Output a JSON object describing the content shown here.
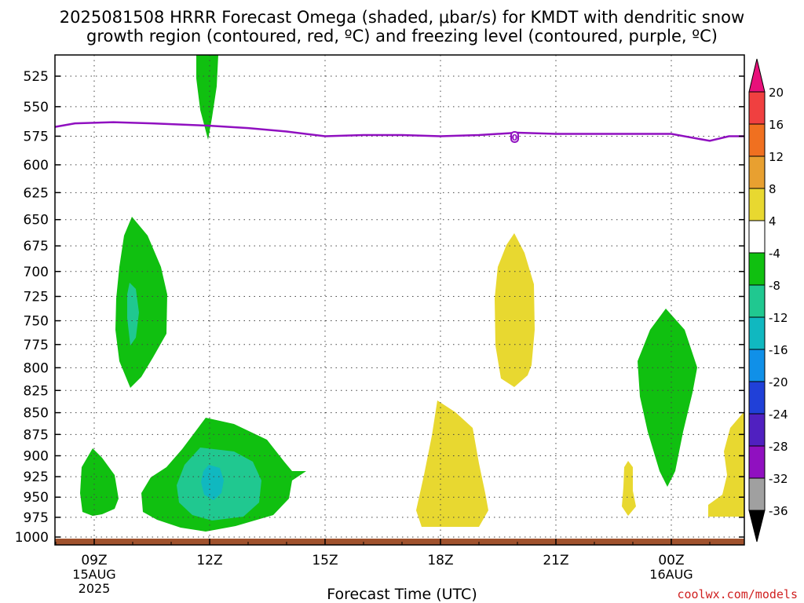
{
  "title": {
    "line1": "2025081508 HRRR Forecast Omega (shaded, μbar/s) for KMDT with dendritic snow",
    "line2": "growth region (contoured, red, ºC) and freezing level (contoured, purple, ºC)"
  },
  "xlabel": "Forecast Time (UTC)",
  "credit": "coolwx.com/models",
  "chart_data": {
    "type": "contour",
    "ylabels": [
      "525",
      "550",
      "575",
      "600",
      "625",
      "650",
      "675",
      "700",
      "725",
      "750",
      "775",
      "800",
      "825",
      "850",
      "875",
      "900",
      "925",
      "950",
      "975",
      "1000"
    ],
    "xticks": [
      {
        "label": "09Z",
        "sub": [
          "15AUG",
          "2025"
        ],
        "hour": 9
      },
      {
        "label": "12Z",
        "sub": [],
        "hour": 12
      },
      {
        "label": "15Z",
        "sub": [],
        "hour": 15
      },
      {
        "label": "18Z",
        "sub": [],
        "hour": 18
      },
      {
        "label": "21Z",
        "sub": [],
        "hour": 21
      },
      {
        "label": "00Z",
        "sub": [
          "16AUG"
        ],
        "hour": 24
      }
    ],
    "colorbar": {
      "labels": [
        "20",
        "16",
        "12",
        "8",
        "4",
        "-4",
        "-8",
        "-12",
        "-16",
        "-20",
        "-24",
        "-28",
        "-32",
        "-36"
      ],
      "colors": [
        "#e8107a",
        "#f04040",
        "#f07020",
        "#e8a030",
        "#e8d830",
        "#ffffff",
        "#10c010",
        "#20c890",
        "#10b8c0",
        "#1090e8",
        "#2040d8",
        "#5020c0",
        "#9010c0",
        "#a0a0a0",
        "#000000"
      ]
    },
    "freezing_level": {
      "label": "0",
      "color": "#9010c0",
      "points": [
        [
          7.5,
          567
        ],
        [
          8.5,
          564
        ],
        [
          9.5,
          563
        ],
        [
          10.5,
          564
        ],
        [
          12,
          566
        ],
        [
          13,
          568
        ],
        [
          14,
          571
        ],
        [
          15,
          575
        ],
        [
          16,
          574
        ],
        [
          17,
          574
        ],
        [
          18,
          575
        ],
        [
          19,
          574
        ],
        [
          20,
          572
        ],
        [
          21,
          573
        ],
        [
          22,
          573
        ],
        [
          23,
          573
        ],
        [
          24,
          573
        ],
        [
          25,
          579
        ],
        [
          25.5,
          575
        ],
        [
          26,
          575
        ]
      ]
    }
  }
}
